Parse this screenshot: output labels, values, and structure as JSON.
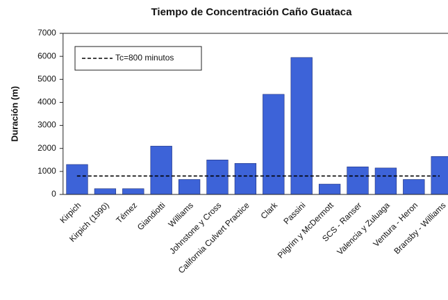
{
  "chart_data": {
    "type": "bar",
    "title": "Tiempo de Concentración Caño Guataca",
    "y_label": "Duración (m)",
    "categories": [
      "Kirpich",
      "Kirpich (1990)",
      "Témez",
      "Giandiotti",
      "Williams",
      "Johnstone y Cross",
      "California Culvert Practice",
      "Clark",
      "Passini",
      "Pilgrim y McDermott",
      "SCS - Ranser",
      "Valencia y Zuluaga",
      "Ventura - Heron",
      "Bransby - Williams"
    ],
    "values": [
      1300,
      250,
      250,
      2100,
      650,
      1500,
      1350,
      4350,
      5950,
      450,
      1200,
      1150,
      650,
      1650
    ],
    "color": "#3d63d8",
    "ylim": [
      0,
      7000
    ],
    "yticks": [
      0,
      1000,
      2000,
      3000,
      4000,
      5000,
      6000,
      7000
    ],
    "reference_line": {
      "value": 800,
      "label": "Tc=800 minutos"
    },
    "legend": "top-left"
  }
}
